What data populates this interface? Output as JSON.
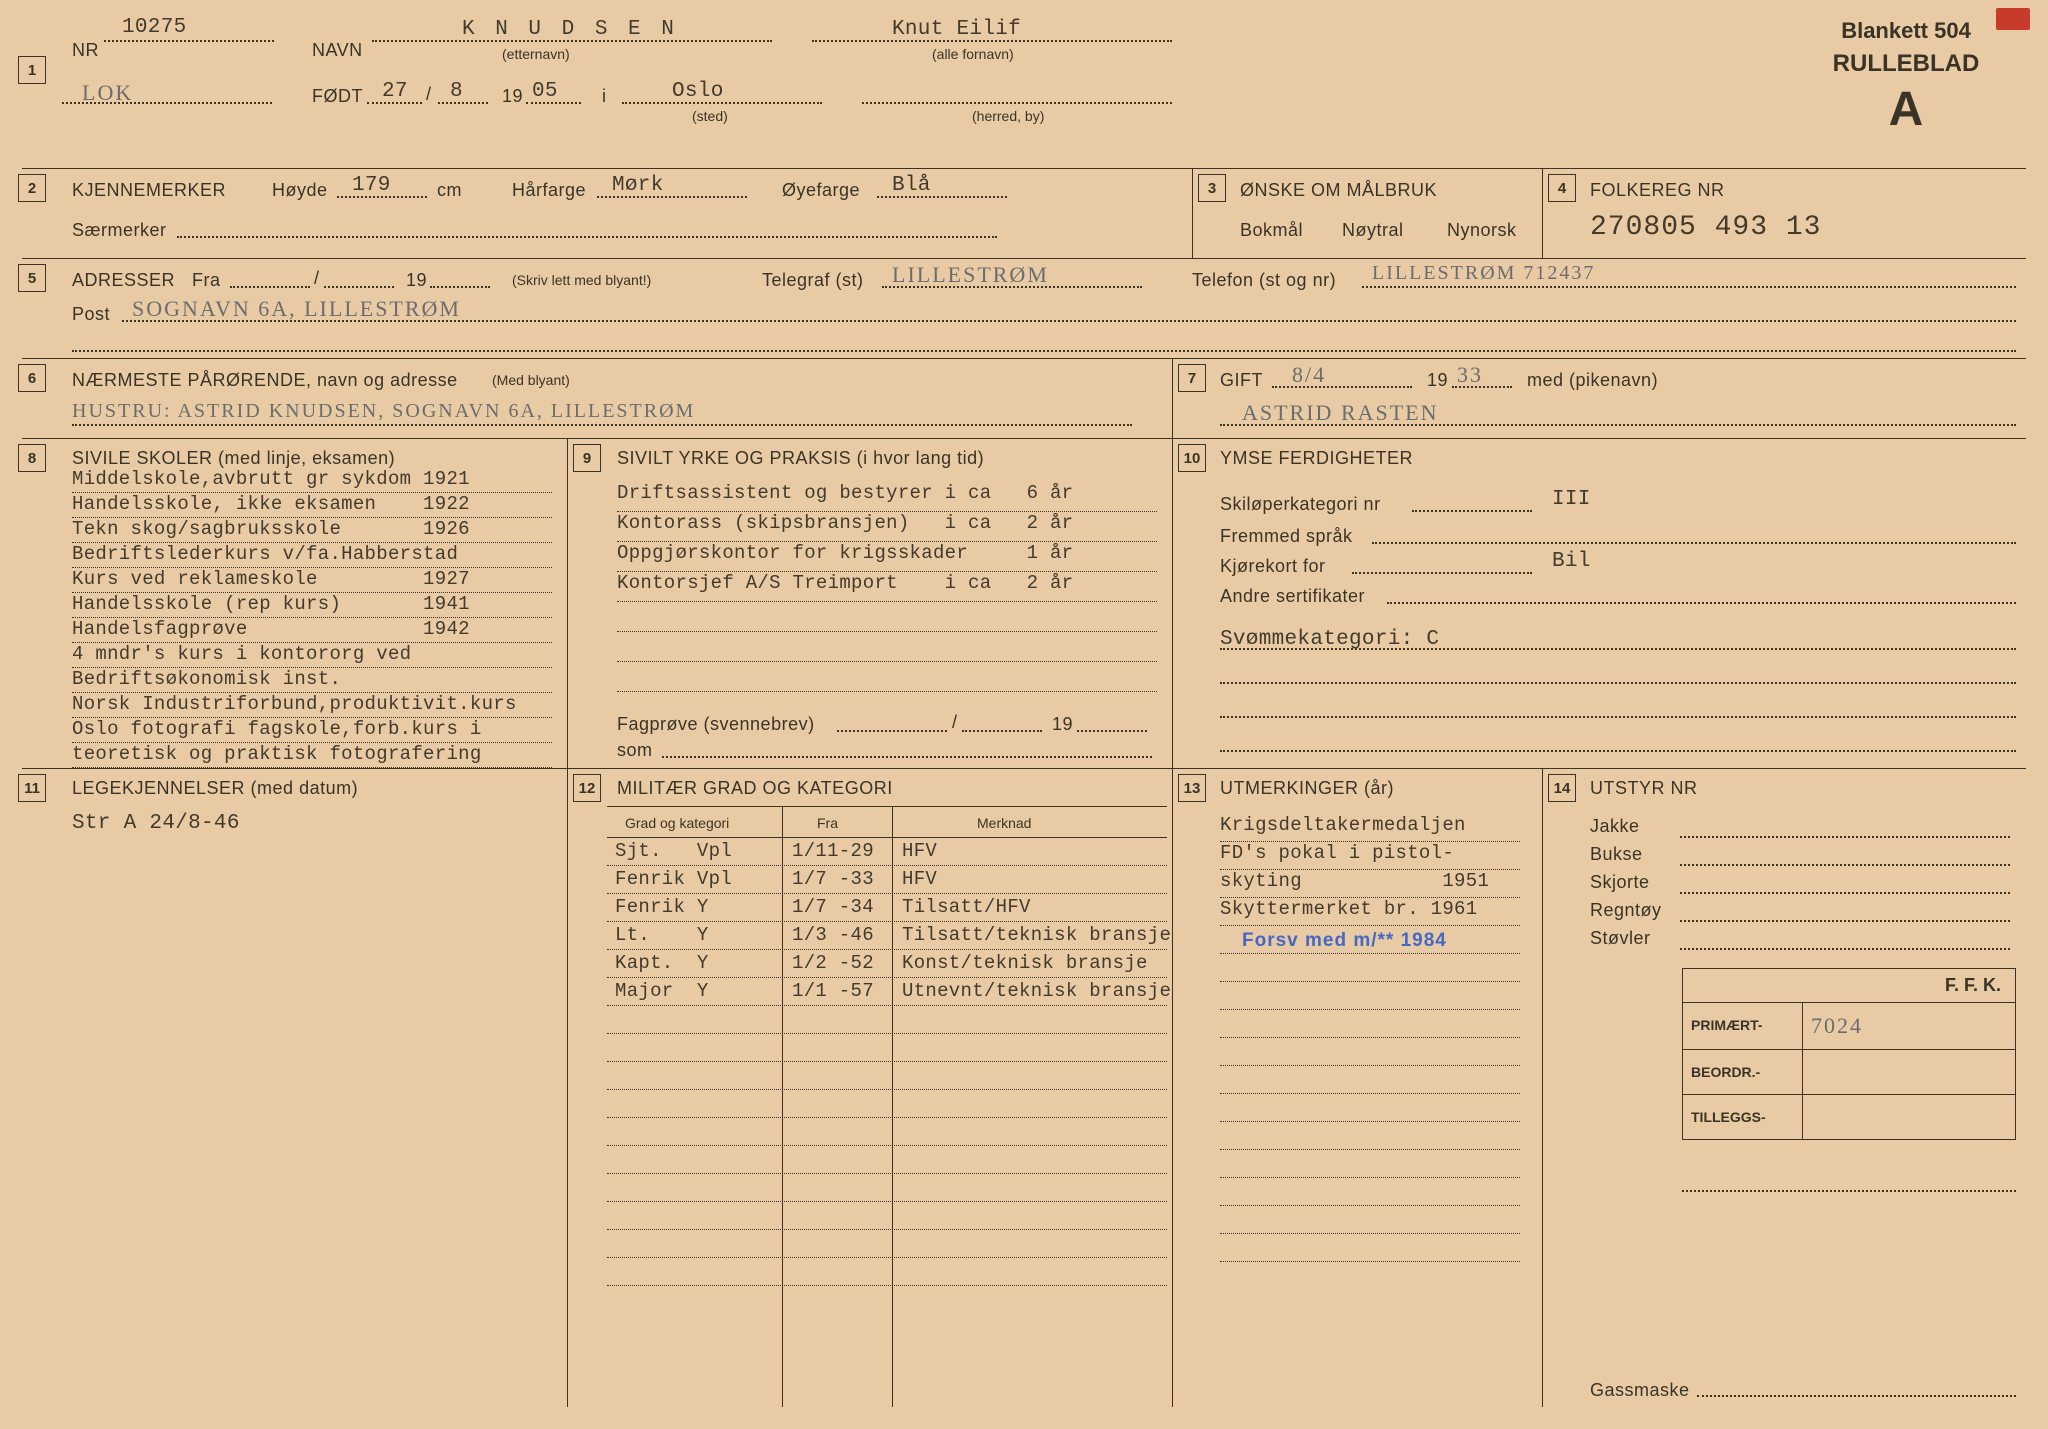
{
  "form": {
    "blankett": "Blankett 504",
    "rulleblad": "RULLEBLAD",
    "rulleblad_letter": "A"
  },
  "box1": {
    "nr_lbl": "NR",
    "nr": "10275",
    "navn_lbl": "NAVN",
    "etternavn_sub": "(etternavn)",
    "etternavn": "K N U D S E N",
    "fornavn": "Knut Eilif",
    "fornavn_sub": "(alle fornavn)",
    "code": "LOK",
    "fodt_lbl": "FØDT",
    "fodt_d": "27",
    "fodt_m": "8",
    "fodt_y": "05",
    "nineteen": "19",
    "i_lbl": "i",
    "sted": "Oslo",
    "sted_sub": "(sted)",
    "herred_sub": "(herred, by)"
  },
  "box2": {
    "title": "KJENNEMERKER",
    "hoyde_lbl": "Høyde",
    "hoyde": "179",
    "cm": "cm",
    "har_lbl": "Hårfarge",
    "har": "Mørk",
    "oye_lbl": "Øyefarge",
    "oye": "Blå",
    "saer_lbl": "Særmerker"
  },
  "box3": {
    "title": "ØNSKE OM MÅLBRUK",
    "opt1": "Bokmål",
    "opt2": "Nøytral",
    "opt3": "Nynorsk"
  },
  "box4": {
    "title": "FOLKEREG NR",
    "value": "270805 493 13"
  },
  "box5": {
    "title": "ADRESSER",
    "fra_lbl": "Fra",
    "nineteen": "19",
    "note": "(Skriv lett med blyant!)",
    "telegraf_lbl": "Telegraf (st)",
    "telegraf": "LILLESTRØM",
    "telefon_lbl": "Telefon (st og nr)",
    "telefon": "LILLESTRØM 712437",
    "post_lbl": "Post",
    "post": "SOGNAVN 6A, LILLESTRØM"
  },
  "box6": {
    "title": "NÆRMESTE PÅRØRENDE, navn og adresse",
    "note": "(Med blyant)",
    "value": "HUSTRU: ASTRID KNUDSEN, SOGNAVN 6A, LILLESTRØM"
  },
  "box7": {
    "title": "GIFT",
    "date": "8/4",
    "nineteen": "19",
    "year": "33",
    "med": "med (pikenavn)",
    "name": "ASTRID RASTEN"
  },
  "box8": {
    "title": "SIVILE SKOLER (med linje, eksamen)",
    "lines": [
      "Middelskole,avbrutt gr sykdom 1921",
      "Handelsskole, ikke eksamen    1922",
      "Tekn skog/sagbruksskole       1926",
      "Bedriftslederkurs v/fa.Habberstad",
      "Kurs ved reklameskole         1927",
      "Handelsskole (rep kurs)       1941",
      "Handelsfagprøve               1942",
      "4 mndr's kurs i kontororg ved",
      "Bedriftsøkonomisk inst.",
      "Norsk Industriforbund,produktivit.kurs",
      "Oslo fotografi fagskole,forb.kurs i",
      "teoretisk og praktisk fotografering"
    ]
  },
  "box9": {
    "title": "SIVILT YRKE OG PRAKSIS (i hvor lang tid)",
    "lines": [
      "Driftsassistent og bestyrer i ca   6 år",
      "Kontorass (skipsbransjen)   i ca   2 år",
      "Oppgjørskontor for krigsskader     1 år",
      "Kontorsjef A/S Treimport    i ca   2 år"
    ],
    "fag_lbl": "Fagprøve (svennebrev)",
    "nineteen": "19",
    "som_lbl": "som"
  },
  "box10": {
    "title": "YMSE FERDIGHETER",
    "ski_lbl": "Skiløperkategori nr",
    "ski": "III",
    "fremmed_lbl": "Fremmed språk",
    "kjore_lbl": "Kjørekort for",
    "kjore": "Bil",
    "andre_lbl": "Andre sertifikater",
    "svomme": "Svømmekategori: C"
  },
  "box11": {
    "title": "LEGEKJENNELSER (med datum)",
    "line1": "Str A 24/8-46"
  },
  "box12": {
    "title": "MILITÆR GRAD OG KATEGORI",
    "h1": "Grad og kategori",
    "h2": "Fra",
    "h3": "Merknad",
    "rows": [
      {
        "g": "Sjt.   Vpl",
        "f": "1/11-29",
        "m": "HFV"
      },
      {
        "g": "Fenrik Vpl",
        "f": "1/7 -33",
        "m": "HFV"
      },
      {
        "g": "Fenrik Y",
        "f": "1/7 -34",
        "m": "Tilsatt/HFV"
      },
      {
        "g": "Lt.    Y",
        "f": "1/3 -46",
        "m": "Tilsatt/teknisk bransje"
      },
      {
        "g": "Kapt.  Y",
        "f": "1/2 -52",
        "m": "Konst/teknisk bransje"
      },
      {
        "g": "Major  Y",
        "f": "1/1 -57",
        "m": "Utnevnt/teknisk bransje"
      }
    ]
  },
  "box13": {
    "title": "UTMERKINGER (år)",
    "lines": [
      "Krigsdeltakermedaljen",
      "FD's pokal i pistol-",
      "skyting            1951",
      "Skyttermerket br. 1961"
    ],
    "stamp": "Forsv med m/**   1984"
  },
  "box14": {
    "title": "UTSTYR NR",
    "items": [
      "Jakke",
      "Bukse",
      "Skjorte",
      "Regntøy",
      "Støvler"
    ],
    "ffk": "F. F. K.",
    "primaert_lbl": "PRIMÆRT-",
    "primaert": "7024",
    "beordr_lbl": "BEORDR.-",
    "tilleggs_lbl": "TILLEGGS-",
    "gass": "Gassmaske"
  }
}
